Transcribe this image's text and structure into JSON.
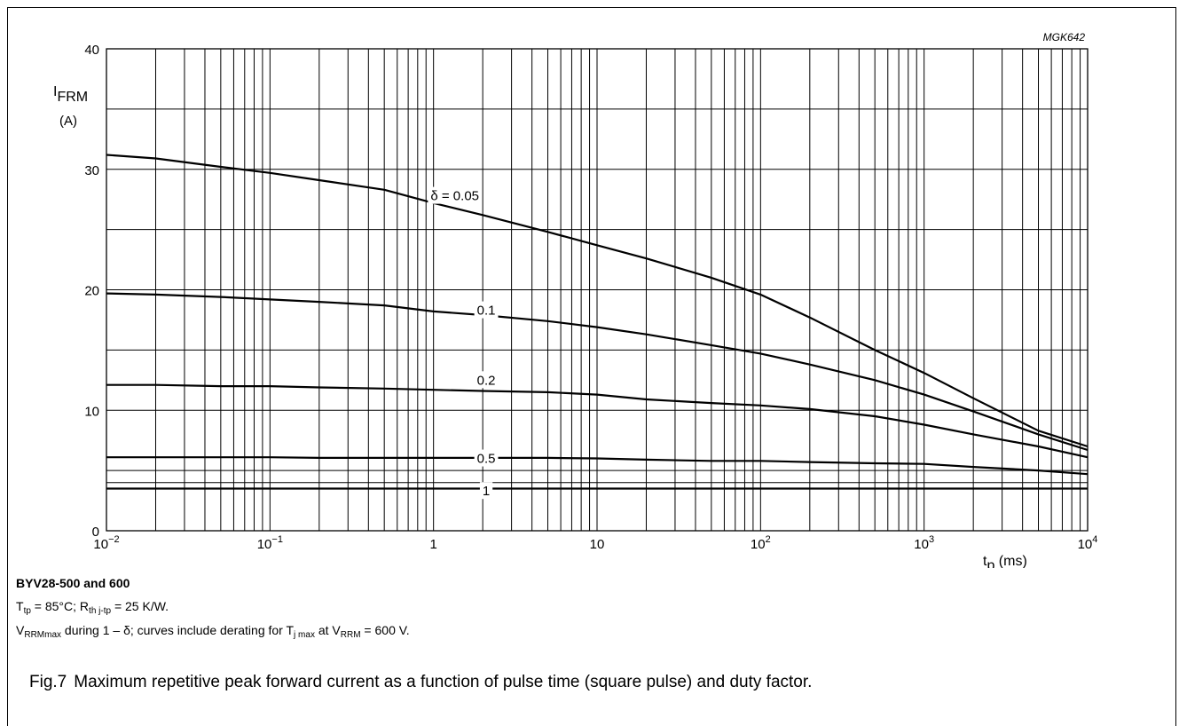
{
  "chart_data": {
    "type": "line",
    "figure_code": "MGK642",
    "xscale": "log",
    "xlim": [
      0.01,
      10000
    ],
    "ylim": [
      0,
      40
    ],
    "xlabel": {
      "main": "t",
      "sub": "p",
      "unit": "(ms)"
    },
    "ylabel": {
      "main": "I",
      "sub": "FRM",
      "unit": "(A)"
    },
    "x_ticks": [
      {
        "value": 0.01,
        "base": "10",
        "exp": "−2",
        "label": ""
      },
      {
        "value": 0.1,
        "base": "10",
        "exp": "−1",
        "label": ""
      },
      {
        "value": 1,
        "base": "",
        "exp": "",
        "label": "1"
      },
      {
        "value": 10,
        "base": "",
        "exp": "",
        "label": "10"
      },
      {
        "value": 100,
        "base": "10",
        "exp": "2",
        "label": ""
      },
      {
        "value": 1000,
        "base": "10",
        "exp": "3",
        "label": ""
      },
      {
        "value": 10000,
        "base": "10",
        "exp": "4",
        "label": ""
      }
    ],
    "y_ticks": [
      {
        "value": 0,
        "label": "0"
      },
      {
        "value": 10,
        "label": "10"
      },
      {
        "value": 20,
        "label": "20"
      },
      {
        "value": 30,
        "label": "30"
      },
      {
        "value": 40,
        "label": "40"
      }
    ],
    "y_gridlines": [
      0,
      4,
      5,
      10,
      15,
      20,
      25,
      30,
      35,
      40
    ],
    "grid": true,
    "series": [
      {
        "name": "δ = 0.05",
        "label_at": [
          1.35,
          27.8
        ],
        "points": [
          [
            0.01,
            31.2
          ],
          [
            0.02,
            30.9
          ],
          [
            0.05,
            30.2
          ],
          [
            0.1,
            29.7
          ],
          [
            0.2,
            29.1
          ],
          [
            0.5,
            28.3
          ],
          [
            1,
            27.2
          ],
          [
            2,
            26.2
          ],
          [
            5,
            24.8
          ],
          [
            10,
            23.7
          ],
          [
            20,
            22.6
          ],
          [
            50,
            21
          ],
          [
            100,
            19.6
          ],
          [
            200,
            17.7
          ],
          [
            500,
            15
          ],
          [
            1000,
            13.1
          ],
          [
            2000,
            11
          ],
          [
            5000,
            8.3
          ],
          [
            10000,
            7
          ]
        ]
      },
      {
        "name": "0.1",
        "label_at": [
          2.1,
          18.3
        ],
        "points": [
          [
            0.01,
            19.7
          ],
          [
            0.02,
            19.6
          ],
          [
            0.05,
            19.4
          ],
          [
            0.1,
            19.2
          ],
          [
            0.2,
            19
          ],
          [
            0.5,
            18.7
          ],
          [
            1,
            18.2
          ],
          [
            2,
            17.9
          ],
          [
            5,
            17.4
          ],
          [
            10,
            16.9
          ],
          [
            20,
            16.3
          ],
          [
            50,
            15.4
          ],
          [
            100,
            14.7
          ],
          [
            200,
            13.8
          ],
          [
            500,
            12.5
          ],
          [
            1000,
            11.3
          ],
          [
            2000,
            9.9
          ],
          [
            5000,
            8
          ],
          [
            10000,
            6.7
          ]
        ]
      },
      {
        "name": "0.2",
        "label_at": [
          2.1,
          12.5
        ],
        "points": [
          [
            0.01,
            12.1
          ],
          [
            0.02,
            12.1
          ],
          [
            0.05,
            12
          ],
          [
            0.1,
            12
          ],
          [
            0.2,
            11.9
          ],
          [
            0.5,
            11.8
          ],
          [
            1,
            11.7
          ],
          [
            2,
            11.6
          ],
          [
            5,
            11.5
          ],
          [
            10,
            11.3
          ],
          [
            20,
            10.9
          ],
          [
            50,
            10.6
          ],
          [
            100,
            10.4
          ],
          [
            200,
            10.1
          ],
          [
            500,
            9.5
          ],
          [
            1000,
            8.8
          ],
          [
            2000,
            8
          ],
          [
            5000,
            7
          ],
          [
            10000,
            6.1
          ]
        ]
      },
      {
        "name": "0.5",
        "label_at": [
          2.1,
          6.0
        ],
        "points": [
          [
            0.01,
            6.1
          ],
          [
            0.02,
            6.1
          ],
          [
            0.05,
            6.1
          ],
          [
            0.1,
            6.1
          ],
          [
            0.2,
            6.05
          ],
          [
            0.5,
            6.05
          ],
          [
            1,
            6.05
          ],
          [
            2,
            6.05
          ],
          [
            5,
            6.05
          ],
          [
            10,
            6
          ],
          [
            20,
            5.9
          ],
          [
            50,
            5.8
          ],
          [
            100,
            5.8
          ],
          [
            200,
            5.7
          ],
          [
            500,
            5.6
          ],
          [
            1000,
            5.55
          ],
          [
            2000,
            5.3
          ],
          [
            5000,
            5
          ],
          [
            10000,
            4.7
          ]
        ]
      },
      {
        "name": "1",
        "label_at": [
          2.1,
          3.3
        ],
        "points": [
          [
            0.01,
            3.5
          ],
          [
            10000,
            3.5
          ]
        ]
      }
    ]
  },
  "caption": {
    "product": "BYV28-500 and 600",
    "line1": {
      "t": "T",
      "t_sub": "tp",
      "t_val": " = 85°C; ",
      "r": "R",
      "r_sub": "th j-tp",
      "r_val": " = 25 K/W."
    },
    "line2": {
      "v": "V",
      "v_sub": "RRMmax",
      "text1": " during 1 – δ; curves include derating for ",
      "tj": "T",
      "tj_sub": "j max",
      "text2": " at ",
      "vrrm": "V",
      "vrrm_sub": "RRM",
      "text3": " = 600 V."
    },
    "figure_number": "Fig.7",
    "figure_title": "Maximum repetitive peak forward current as a function of pulse time (square pulse) and duty factor."
  }
}
